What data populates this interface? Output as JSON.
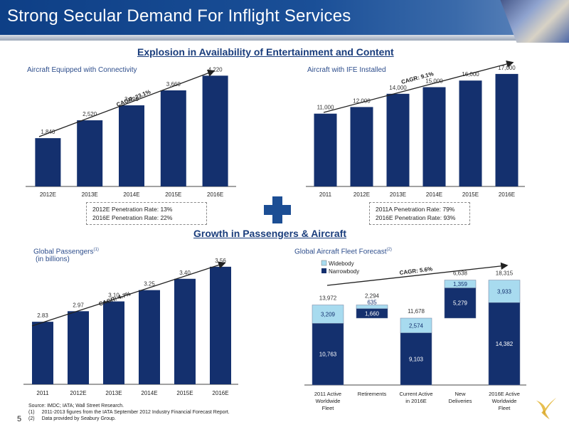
{
  "header": {
    "title": "Strong Secular Demand For Inflight Services"
  },
  "sections": {
    "top_heading": "Explosion in Availability  of Entertainment and Content",
    "bottom_heading": "Growth in Passengers & Aircraft"
  },
  "colors": {
    "bar": "#14306e",
    "widebody": "#a8dbef",
    "narrowbody": "#14306e",
    "heading": "#1a3d7c",
    "plus": "#1c4e94"
  },
  "footer": {
    "source": "Source:  IMDC; IATA; Wall Street Research.",
    "notes": [
      {
        "marker": "(1)",
        "text": "2011-2013  figures from the IATA September  2012 Industry  Financial Forecast Report."
      },
      {
        "marker": "(2)",
        "text": "Data provided  by Seabury  Group."
      }
    ],
    "page_number": "5"
  },
  "chart_data": [
    {
      "id": "connectivity",
      "type": "bar",
      "title": "Aircraft Equipped   with Connectivity",
      "categories": [
        "2012E",
        "2013E",
        "2014E",
        "2015E",
        "2016E"
      ],
      "values": [
        1840,
        2520,
        3090,
        3660,
        4220
      ],
      "labels": [
        "1,840",
        "2,520",
        "3,090",
        "3,660",
        "4,220"
      ],
      "ylim": [
        0,
        4500
      ],
      "cagr": "CAGR: 23.1%",
      "notes": [
        "2012E Penetration Rate: 13%",
        "2016E Penetration Rate: 22%"
      ]
    },
    {
      "id": "ife",
      "type": "bar",
      "title": "Aircraft with IFE   Installed",
      "categories": [
        "2011",
        "2012E",
        "2013E",
        "2014E",
        "2015E",
        "2016E"
      ],
      "values": [
        11000,
        12000,
        14000,
        15000,
        16000,
        17000
      ],
      "labels": [
        "11,000",
        "12,000",
        "14,000",
        "15,000",
        "16,000",
        "17,000"
      ],
      "ylim": [
        0,
        20000
      ],
      "cagr": "CAGR: 9.1%",
      "notes": [
        "2011A Penetration Rate: 79%",
        "2016E Penetration Rate: 93%"
      ]
    },
    {
      "id": "passengers",
      "type": "bar",
      "title": "Global  Passengers",
      "title_sup": "(1)",
      "subtitle": "(in billions)",
      "categories": [
        "2011",
        "2012E",
        "2013E",
        "2014E",
        "2015E",
        "2016E"
      ],
      "values": [
        2.83,
        2.97,
        3.1,
        3.25,
        3.4,
        3.56
      ],
      "labels": [
        "2.83",
        "2.97",
        "3.10",
        "3.25",
        "3.40",
        "3.56"
      ],
      "ylim": [
        2.0,
        3.7
      ],
      "cagr": "CAGR: 4.7%"
    },
    {
      "id": "fleet",
      "type": "bar",
      "stacked": "waterfall",
      "title": "Global  Aircraft Fleet  Forecast",
      "title_sup": "(2)",
      "legend": [
        "Widebody",
        "Narrowbody"
      ],
      "categories": [
        "2011 Active Worldwide Fleet",
        "Retirements",
        "Current Active in 2016E",
        "New Deliveries",
        "2016E Active Worldwide Fleet"
      ],
      "category_lines": [
        [
          "2011 Active",
          "Worldwide",
          "Fleet"
        ],
        [
          "Retirements"
        ],
        [
          "Current Active",
          "in 2016E"
        ],
        [
          "New",
          "Deliveries"
        ],
        [
          "2016E Active",
          "Worldwide",
          "Fleet"
        ]
      ],
      "series": [
        {
          "name": "Narrowbody",
          "values": [
            10763,
            1660,
            9103,
            5279,
            14382
          ],
          "labels": [
            "10,763",
            "1,660",
            "9,103",
            "5,279",
            "14,382"
          ]
        },
        {
          "name": "Widebody",
          "values": [
            3209,
            635,
            2574,
            1359,
            3933
          ],
          "labels": [
            "3,209",
            "635",
            "2,574",
            "1,359",
            "3,933"
          ]
        }
      ],
      "totals": [
        13972,
        2294,
        11678,
        6638,
        18315
      ],
      "total_labels": [
        "13,972",
        "2,294",
        "11,678",
        "6,638",
        "18,315"
      ],
      "bases": [
        0,
        11678,
        0,
        11678,
        0
      ],
      "ylim": [
        0,
        20000
      ],
      "cagr": "CAGR: 5.6%"
    }
  ]
}
